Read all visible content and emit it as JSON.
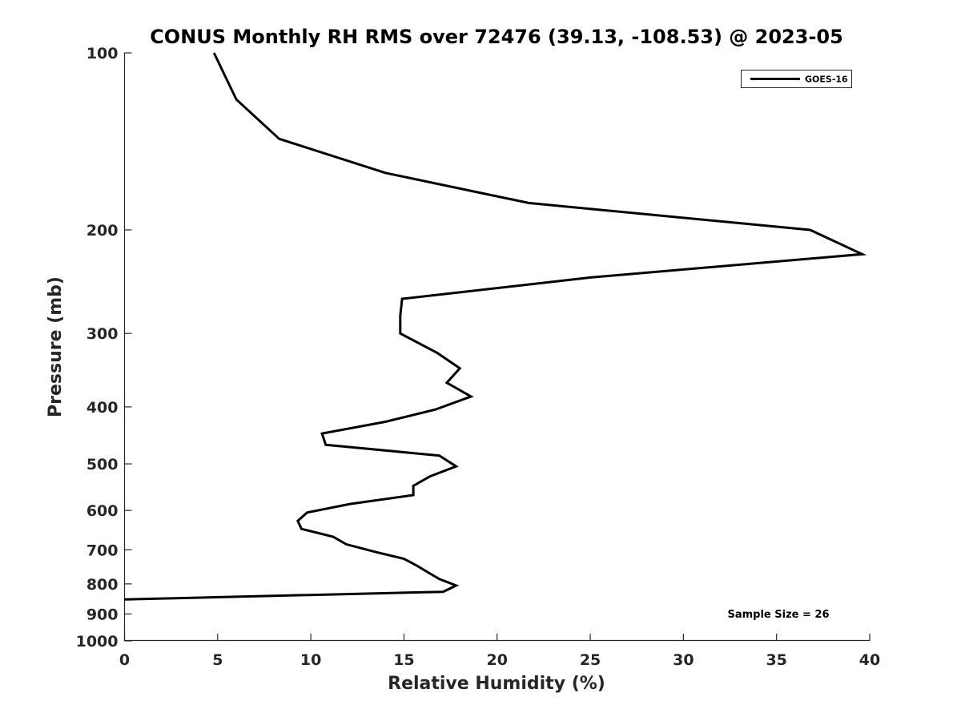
{
  "chart_data": {
    "type": "line",
    "title": "CONUS Monthly RH RMS over 72476 (39.13, -108.53) @ 2023-05",
    "xlabel": "Relative Humidity (%)",
    "ylabel": "Pressure (mb)",
    "xlim": [
      0,
      40
    ],
    "ylim": [
      1000,
      100
    ],
    "yscale": "log",
    "y_reversed": true,
    "grid": false,
    "legend_position": "top-right",
    "x_ticks": [
      0,
      5,
      10,
      15,
      20,
      25,
      30,
      35,
      40
    ],
    "x_tick_labels": [
      "0",
      "5",
      "10",
      "15",
      "20",
      "25",
      "30",
      "35",
      "40"
    ],
    "y_ticks": [
      100,
      200,
      300,
      400,
      500,
      600,
      700,
      800,
      900,
      1000
    ],
    "y_tick_labels": [
      "100",
      "200",
      "300",
      "400",
      "500",
      "600",
      "700",
      "800",
      "900",
      "1000"
    ],
    "annotation": "Sample Size = 26",
    "line_color": "#000000",
    "series": [
      {
        "name": "GOES-16",
        "points": [
          {
            "x": 4.8,
            "y": 100
          },
          {
            "x": 6.0,
            "y": 120
          },
          {
            "x": 8.3,
            "y": 140
          },
          {
            "x": 14.0,
            "y": 160
          },
          {
            "x": 21.7,
            "y": 180
          },
          {
            "x": 36.8,
            "y": 200
          },
          {
            "x": 39.6,
            "y": 220
          },
          {
            "x": 25.0,
            "y": 241
          },
          {
            "x": 14.9,
            "y": 262
          },
          {
            "x": 14.8,
            "y": 280
          },
          {
            "x": 14.8,
            "y": 300
          },
          {
            "x": 16.8,
            "y": 324
          },
          {
            "x": 18.0,
            "y": 344
          },
          {
            "x": 17.3,
            "y": 364
          },
          {
            "x": 18.6,
            "y": 384
          },
          {
            "x": 16.7,
            "y": 404
          },
          {
            "x": 14.0,
            "y": 424
          },
          {
            "x": 10.6,
            "y": 444
          },
          {
            "x": 10.8,
            "y": 464
          },
          {
            "x": 16.9,
            "y": 484
          },
          {
            "x": 17.8,
            "y": 505
          },
          {
            "x": 16.4,
            "y": 525
          },
          {
            "x": 15.5,
            "y": 545
          },
          {
            "x": 15.5,
            "y": 565
          },
          {
            "x": 12.1,
            "y": 585
          },
          {
            "x": 9.8,
            "y": 605
          },
          {
            "x": 9.3,
            "y": 625
          },
          {
            "x": 9.5,
            "y": 645
          },
          {
            "x": 11.2,
            "y": 665
          },
          {
            "x": 11.9,
            "y": 685
          },
          {
            "x": 13.4,
            "y": 705
          },
          {
            "x": 15.0,
            "y": 725
          },
          {
            "x": 15.7,
            "y": 745
          },
          {
            "x": 16.3,
            "y": 765
          },
          {
            "x": 16.9,
            "y": 785
          },
          {
            "x": 17.8,
            "y": 805
          },
          {
            "x": 17.1,
            "y": 825
          },
          {
            "x": 0.0,
            "y": 850
          }
        ]
      }
    ]
  }
}
